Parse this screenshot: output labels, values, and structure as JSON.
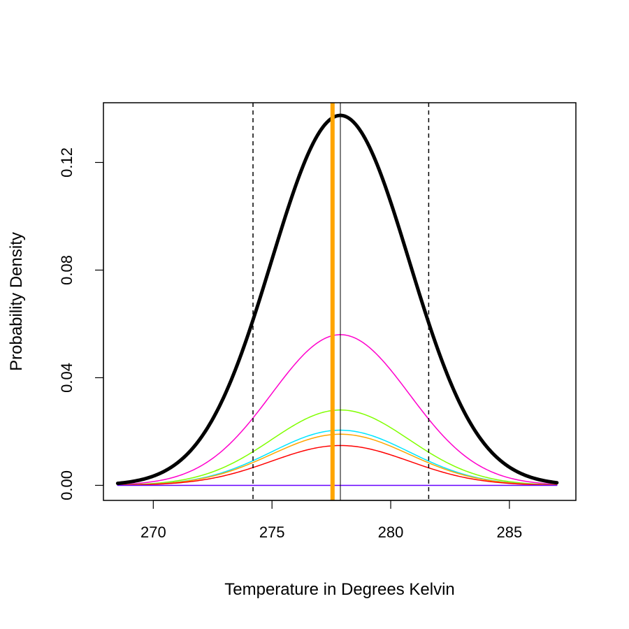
{
  "chart_data": {
    "type": "line",
    "xlabel": "Temperature in Degrees Kelvin",
    "ylabel": "Probability Density",
    "xlim": [
      267.9,
      287.8
    ],
    "ylim": [
      -0.0056,
      0.1422
    ],
    "x_ticks": [
      270,
      275,
      280,
      285
    ],
    "y_ticks": [
      0.0,
      0.04,
      0.08,
      0.12
    ],
    "x_tick_labels": [
      "270",
      "275",
      "280",
      "285"
    ],
    "y_tick_labels": [
      "0.00",
      "0.04",
      "0.08",
      "0.12"
    ],
    "grid": false,
    "legend": "none",
    "x_range": [
      268.5,
      287.0
    ],
    "series": [
      {
        "color": "#000000",
        "width": 5,
        "peak": 0.1375,
        "mean": 277.88,
        "sd": 2.9
      },
      {
        "color": "#ff00cc",
        "width": 1.5,
        "peak": 0.056,
        "mean": 277.88,
        "sd": 2.9
      },
      {
        "color": "#80ff00",
        "width": 1.5,
        "peak": 0.028,
        "mean": 277.88,
        "sd": 2.9
      },
      {
        "color": "#00e5ff",
        "width": 1.5,
        "peak": 0.0205,
        "mean": 277.88,
        "sd": 2.9
      },
      {
        "color": "#ffa500",
        "width": 1.5,
        "peak": 0.019,
        "mean": 277.88,
        "sd": 2.9
      },
      {
        "color": "#ff0000",
        "width": 1.5,
        "peak": 0.0148,
        "mean": 277.88,
        "sd": 2.9
      },
      {
        "color": "#6600ff",
        "width": 1.5,
        "peak": 0.0,
        "mean": 277.88,
        "sd": 2.9
      }
    ],
    "vlines": [
      {
        "x": 274.2,
        "color": "#000000",
        "width": 1.5,
        "dash": "6,5"
      },
      {
        "x": 281.6,
        "color": "#000000",
        "width": 1.5,
        "dash": "6,5"
      },
      {
        "x": 277.88,
        "color": "#000000",
        "width": 1,
        "dash": ""
      },
      {
        "x": 277.55,
        "color": "#ffa500",
        "width": 6,
        "dash": ""
      }
    ]
  }
}
